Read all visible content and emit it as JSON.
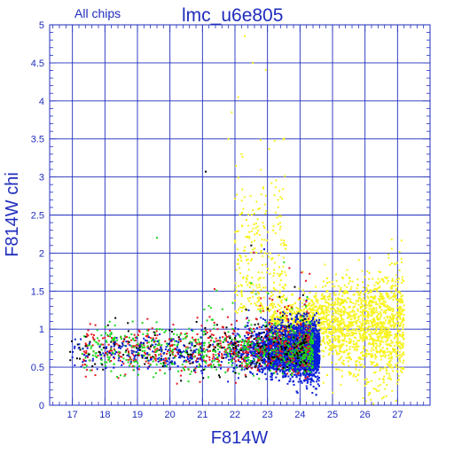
{
  "chart_data": {
    "type": "scatter",
    "title": "lmc_u6e805",
    "subtitle": "All chips",
    "xlabel": "F814W",
    "ylabel": "F814W chi",
    "xlim": [
      16.3,
      28.0
    ],
    "ylim": [
      0,
      5
    ],
    "x_ticks": [
      17,
      18,
      19,
      20,
      21,
      22,
      23,
      24,
      25,
      26,
      27
    ],
    "y_ticks": [
      0,
      0.5,
      1,
      1.5,
      2,
      2.5,
      3,
      3.5,
      4,
      4.5,
      5
    ],
    "x_tick_labels": [
      "17",
      "18",
      "19",
      "20",
      "21",
      "22",
      "23",
      "24",
      "25",
      "26",
      "27"
    ],
    "y_tick_labels": [
      "0",
      "0.5",
      "1",
      "1.5",
      "2",
      "2.5",
      "3",
      "3.5",
      "4",
      "4.5",
      "5"
    ],
    "grid": true,
    "colors": {
      "axis": "#1f2dbd",
      "grid": "#1f2dbd",
      "series": [
        "#0a1fd8",
        "#e8161d",
        "#18d81c",
        "#f7f31b",
        "#000000"
      ]
    },
    "series_regions": [
      {
        "color_index": 3,
        "count": 2300,
        "x": [
          22.0,
          27.3
        ],
        "y_center": 1.1,
        "y_spread": 0.35,
        "tail": true
      },
      {
        "color_index": 0,
        "count": 3200,
        "x": [
          20.8,
          24.6
        ],
        "y_center": 0.72,
        "y_spread": 0.15
      },
      {
        "color_index": 1,
        "count": 700,
        "x": [
          17.3,
          24.3
        ],
        "y_center": 0.72,
        "y_spread": 0.15
      },
      {
        "color_index": 2,
        "count": 650,
        "x": [
          17.3,
          24.4
        ],
        "y_center": 0.72,
        "y_spread": 0.15
      },
      {
        "color_index": 4,
        "count": 220,
        "x": [
          16.8,
          24.2
        ],
        "y_center": 0.72,
        "y_spread": 0.15
      },
      {
        "color_index": 0,
        "count": 180,
        "x": [
          17.0,
          21.0
        ],
        "y_center": 0.68,
        "y_spread": 0.12
      }
    ],
    "outliers": [
      {
        "x": 21.1,
        "y": 3.07,
        "color_index": 4
      },
      {
        "x": 22.3,
        "y": 4.85,
        "color_index": 3
      },
      {
        "x": 22.55,
        "y": 4.5,
        "color_index": 3
      },
      {
        "x": 22.1,
        "y": 4.05,
        "color_index": 3
      },
      {
        "x": 21.9,
        "y": 3.85,
        "color_index": 3
      },
      {
        "x": 21.8,
        "y": 3.5,
        "color_index": 3
      },
      {
        "x": 22.2,
        "y": 3.3,
        "color_index": 3
      },
      {
        "x": 19.6,
        "y": 2.2,
        "color_index": 2
      },
      {
        "x": 22.5,
        "y": 2.1,
        "color_index": 4
      },
      {
        "x": 22.9,
        "y": 2.05,
        "color_index": 0
      }
    ]
  }
}
